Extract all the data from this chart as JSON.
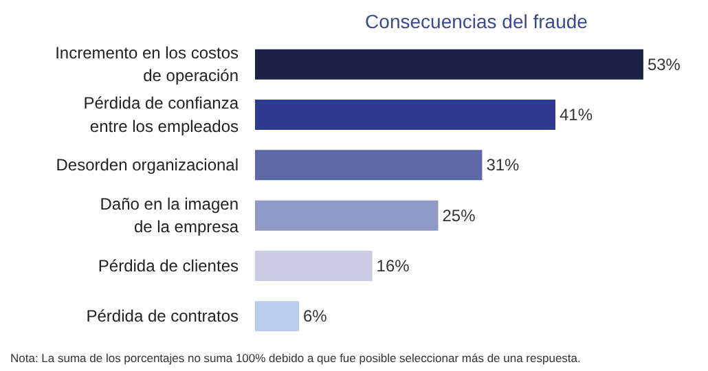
{
  "chart_data": {
    "type": "bar",
    "orientation": "horizontal",
    "title": "Consecuencias del fraude",
    "categories": [
      "Incremento en los costos\nde operación",
      "Pérdida de confianza\nentre los empleados",
      "Desorden organizacional",
      "Daño en la imagen\nde la empresa",
      "Pérdida de clientes",
      "Pérdida de contratos"
    ],
    "values": [
      53,
      41,
      31,
      25,
      16,
      6
    ],
    "colors": [
      "#1b2246",
      "#2f3c8e",
      "#5e6aa5",
      "#9098c6",
      "#c9cce2",
      "#b7cdeb"
    ],
    "value_labels": [
      "53%",
      "41%",
      "31%",
      "25%",
      "16%",
      "6%"
    ],
    "annotations": [
      "Nota: La suma de los porcentajes no suma 100% debido a que fue posible seleccionar más de una respuesta."
    ]
  }
}
